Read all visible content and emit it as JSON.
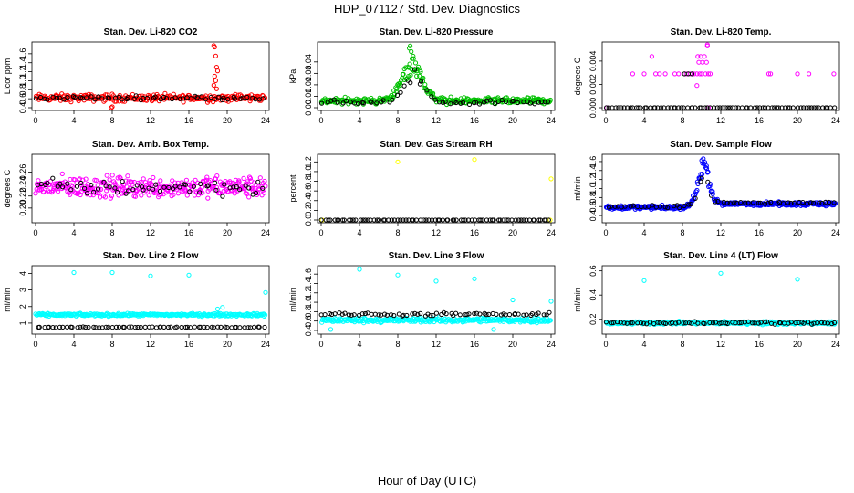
{
  "figure": {
    "title": "HDP_071127  Std. Dev. Diagnostics",
    "xlabel": "Hour of Day (UTC)"
  },
  "chart_data": [
    {
      "type": "scatter",
      "title": "Stan. Dev. Li-820 CO2",
      "ylabel": "Licor ppm",
      "xlim": [
        0,
        24
      ],
      "ylim": [
        0.4,
        1.8
      ],
      "xticks": [
        "0",
        "4",
        "8",
        "12",
        "16",
        "20",
        "24"
      ],
      "yticks": [
        "0.4",
        "0.6",
        "0.8",
        "1.0",
        "1.2",
        "1.4",
        "1.6"
      ],
      "series": [
        {
          "color": "#ff0000",
          "base": 0.62,
          "spread": 0.12,
          "count": 260,
          "step": 0,
          "extra_x": [
            18.6,
            18.7,
            18.8,
            18.9,
            19.0,
            18.7,
            18.8,
            8.0,
            7.9,
            18.6,
            18.9
          ],
          "extra_y": [
            1.78,
            1.75,
            1.55,
            1.3,
            1.22,
            1.1,
            1.0,
            0.42,
            0.4,
            0.9,
            0.82
          ]
        },
        {
          "color": "#000000",
          "base": 0.62,
          "spread": 0.06,
          "count": 60,
          "step": 0
        }
      ]
    },
    {
      "type": "scatter",
      "title": "Stan. Dev. Li-820 Pressure",
      "ylabel": "kPa",
      "xlim": [
        0,
        24
      ],
      "ylim": [
        0.0,
        0.055
      ],
      "xticks": [
        "0",
        "4",
        "8",
        "12",
        "16",
        "20",
        "24"
      ],
      "yticks": [
        "0.00",
        "0.01",
        "0.02",
        "0.03",
        "0.04"
      ],
      "series": [
        {
          "color": "#00c000",
          "base": 0.006,
          "spread": 0.004,
          "count": 320,
          "peak_x": 9.5,
          "peak_y": 0.038,
          "peak_w": 1.5,
          "extra_x": [
            9.2,
            9.4,
            9.6,
            9.3
          ],
          "extra_y": [
            0.052,
            0.049,
            0.045,
            0.054
          ]
        },
        {
          "color": "#000000",
          "base": 0.005,
          "spread": 0.003,
          "count": 60,
          "peak_x": 9.7,
          "peak_y": 0.03,
          "peak_w": 1.4
        }
      ]
    },
    {
      "type": "scatter",
      "title": "Stan. Dev. Li-820 Temp.",
      "ylabel": "degrees C",
      "xlim": [
        0,
        24
      ],
      "ylim": [
        0.0,
        0.0054
      ],
      "xticks": [
        "0",
        "4",
        "8",
        "12",
        "16",
        "20",
        "24"
      ],
      "yticks": [
        "0.000",
        "0.002",
        "0.004"
      ],
      "series": [
        {
          "color": "#ff00ff",
          "base": 0.0,
          "spread": 0.0,
          "count": 0,
          "step": 0,
          "extra_x": [
            2.8,
            4.0,
            4.8,
            5.2,
            5.6,
            6.2,
            7.2,
            7.6,
            8.4,
            8.8,
            9.2,
            9.5,
            9.7,
            9.9,
            10.1,
            10.3,
            10.5,
            10.7,
            10.9,
            9.6,
            10.0,
            10.4,
            9.8,
            10.6,
            17.0,
            17.2,
            20.0,
            21.2,
            23.8,
            10.6,
            0.1,
            10.7,
            9.5
          ],
          "extra_y": [
            0.0029,
            0.0029,
            0.0044,
            0.0029,
            0.0029,
            0.0029,
            0.0029,
            0.0029,
            0.0029,
            0.0029,
            0.0029,
            0.0029,
            0.0039,
            0.0044,
            0.0039,
            0.0044,
            0.0039,
            0.0029,
            0.0029,
            0.0044,
            0.0029,
            0.0029,
            0.0029,
            0.0053,
            0.0029,
            0.0029,
            0.0029,
            0.0029,
            0.0029,
            0.0058,
            0.0,
            0.0,
            0.0019
          ]
        },
        {
          "color": "#000000",
          "base": 0.0,
          "spread": 0.0,
          "count": 80,
          "step": 0,
          "extra_x": [
            8.2,
            8.6,
            9.0
          ],
          "extra_y": [
            0.0029,
            0.0029,
            0.0029
          ]
        }
      ]
    },
    {
      "type": "scatter",
      "title": "Stan. Dev. Amb. Box Temp.",
      "ylabel": "degrees C",
      "xlim": [
        0,
        24
      ],
      "ylim": [
        0.18,
        0.285
      ],
      "xticks": [
        "0",
        "4",
        "8",
        "12",
        "16",
        "20",
        "24"
      ],
      "yticks": [
        "0.20",
        "0.22",
        "0.24",
        "0.26"
      ],
      "series": [
        {
          "color": "#ff00ff",
          "base": 0.235,
          "spread": 0.026,
          "count": 340,
          "step": 0
        },
        {
          "color": "#000000",
          "base": 0.235,
          "spread": 0.02,
          "count": 60,
          "step": 0
        }
      ]
    },
    {
      "type": "scatter",
      "title": "Stan. Dev. Gas Stream RH",
      "ylabel": "percent",
      "xlim": [
        0,
        24
      ],
      "ylim": [
        0.0,
        1.3
      ],
      "xticks": [
        "0",
        "4",
        "8",
        "12",
        "16",
        "20",
        "24"
      ],
      "yticks": [
        "0.0",
        "0.2",
        "0.4",
        "0.6",
        "0.8",
        "1.0",
        "1.2"
      ],
      "series": [
        {
          "color": "#ffff00",
          "base": 0.0,
          "spread": 0.0,
          "count": 0,
          "step": 0,
          "extra_x": [
            8.0,
            16.0,
            24.0,
            0.1,
            23.9
          ],
          "extra_y": [
            1.2,
            1.25,
            0.85,
            0.0,
            0.0
          ]
        },
        {
          "color": "#000000",
          "base": 0.0,
          "spread": 0.0,
          "count": 80,
          "step": 0
        }
      ]
    },
    {
      "type": "scatter",
      "title": "Stan. Dev. Sample Flow",
      "ylabel": "ml/min",
      "xlim": [
        0,
        24
      ],
      "ylim": [
        0.3,
        1.7
      ],
      "xticks": [
        "0",
        "4",
        "8",
        "12",
        "16",
        "20",
        "24"
      ],
      "yticks": [
        "0.4",
        "0.6",
        "0.8",
        "1.0",
        "1.2",
        "1.4",
        "1.6"
      ],
      "series": [
        {
          "color": "#0000ff",
          "base": 0.58,
          "spread": 0.06,
          "count": 340,
          "peak_x": 10.2,
          "peak_y": 1.5,
          "peak_w": 0.9,
          "step": 0.08
        },
        {
          "color": "#000000",
          "base": 0.6,
          "spread": 0.04,
          "count": 60,
          "peak_x": 10.2,
          "peak_y": 1.2,
          "peak_w": 0.9,
          "step": 0.08
        }
      ]
    },
    {
      "type": "scatter",
      "title": "Stan. Dev. Line 2 Flow",
      "ylabel": "ml/min",
      "xlim": [
        0,
        24
      ],
      "ylim": [
        0.5,
        4.3
      ],
      "xticks": [
        "0",
        "4",
        "8",
        "12",
        "16",
        "20",
        "24"
      ],
      "yticks": [
        "1",
        "2",
        "3",
        "4"
      ],
      "series": [
        {
          "color": "#00ffff",
          "base": 1.5,
          "spread": 0.12,
          "count": 300,
          "step": 0,
          "extra_x": [
            4.0,
            8.0,
            12.0,
            16.0,
            24.0,
            19.0,
            19.5
          ],
          "extra_y": [
            4.05,
            4.05,
            3.85,
            3.9,
            2.85,
            1.85,
            1.95
          ]
        },
        {
          "color": "#000000",
          "base": 0.75,
          "spread": 0.04,
          "count": 70,
          "step": 0
        }
      ]
    },
    {
      "type": "scatter",
      "title": "Stan. Dev. Line 3 Flow",
      "ylabel": "ml/min",
      "xlim": [
        0,
        24
      ],
      "ylim": [
        0.38,
        1.72
      ],
      "xticks": [
        "0",
        "4",
        "8",
        "12",
        "16",
        "20",
        "24"
      ],
      "yticks": [
        "0.4",
        "0.6",
        "0.8",
        "1.0",
        "1.2",
        "1.4",
        "1.6"
      ],
      "series": [
        {
          "color": "#00ffff",
          "base": 0.62,
          "spread": 0.07,
          "count": 300,
          "step": 0,
          "extra_x": [
            4.0,
            8.0,
            12.0,
            16.0,
            20.0,
            24.0,
            1.0,
            18.0
          ],
          "extra_y": [
            1.7,
            1.58,
            1.45,
            1.5,
            1.05,
            1.02,
            0.42,
            0.42
          ]
        },
        {
          "color": "#000000",
          "base": 0.74,
          "spread": 0.05,
          "count": 70,
          "step": 0
        }
      ]
    },
    {
      "type": "scatter",
      "title": "Stan. Dev. Line 4 (LT) Flow",
      "ylabel": "ml/min",
      "xlim": [
        0,
        24
      ],
      "ylim": [
        0.1,
        0.62
      ],
      "xticks": [
        "0",
        "4",
        "8",
        "12",
        "16",
        "20",
        "24"
      ],
      "yticks": [
        "0.2",
        "0.4",
        "0.6"
      ],
      "series": [
        {
          "color": "#00ffff",
          "base": 0.17,
          "spread": 0.018,
          "count": 300,
          "step": 0,
          "extra_x": [
            4.0,
            12.0,
            20.0
          ],
          "extra_y": [
            0.52,
            0.58,
            0.53
          ]
        },
        {
          "color": "#000000",
          "base": 0.17,
          "spread": 0.014,
          "count": 70,
          "step": 0
        }
      ]
    }
  ]
}
